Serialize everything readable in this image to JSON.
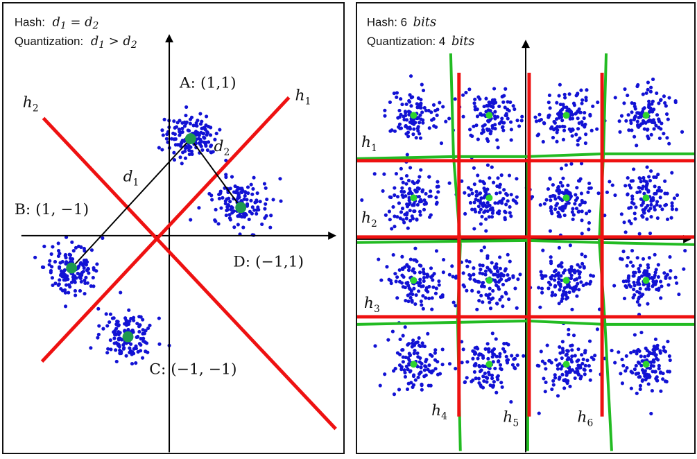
{
  "colors": {
    "points": "#1212d4",
    "center_left": "#1f9a4f",
    "center_right": "#2ed42e",
    "hash_line": "#ee1111",
    "quant_line": "#22bb22",
    "axis": "#000000"
  },
  "left_panel": {
    "note_line1_label": "Hash:",
    "note_line1_eq": "d1 = d2",
    "note_line2_label": "Quantization:",
    "note_line2_eq": "d1 > d2",
    "hash_lines": [
      "h1",
      "h2"
    ],
    "points": {
      "A": "A: (1,1)",
      "B": "B: (1, −1)",
      "C": "C: (−1, −1)",
      "D": "D: (−1,1)"
    },
    "distances": [
      "d1",
      "d2"
    ]
  },
  "right_panel": {
    "note_line1_label": "Hash: 6",
    "note_line1_unit": "bits",
    "note_line2_label": "Quantization: 4",
    "note_line2_unit": "bits",
    "hash_lines": [
      "h1",
      "h2",
      "h3",
      "h4",
      "h5",
      "h6"
    ]
  }
}
